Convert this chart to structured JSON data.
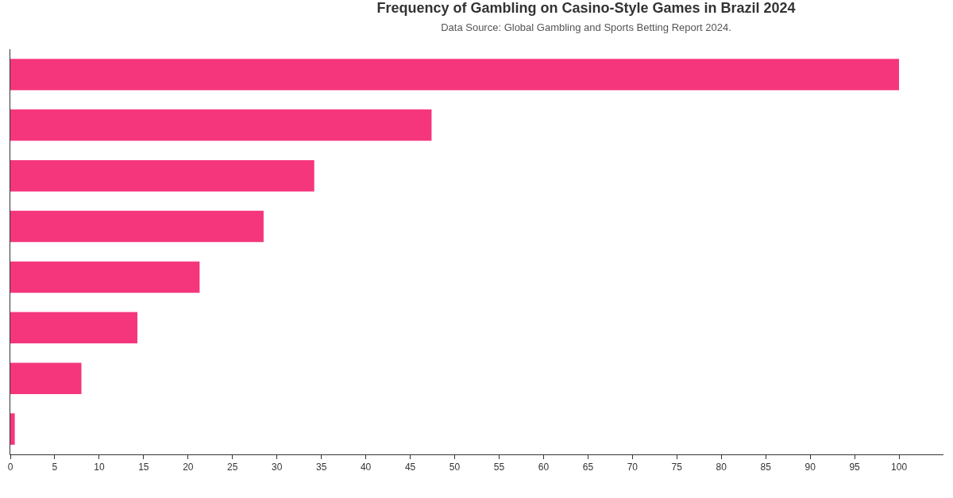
{
  "chart_data": {
    "type": "bar",
    "orientation": "horizontal",
    "title": "Frequency of Gambling on Casino-Style Games in Brazil 2024",
    "subtitle": "Data Source: Global Gambling and Sports Betting Report 2024.",
    "categories": [
      null,
      null,
      null,
      null,
      null,
      null,
      null,
      null
    ],
    "values": [
      100,
      47.4,
      34.2,
      28.5,
      21.3,
      14.3,
      8.0,
      0.5
    ],
    "color": "#f5367c",
    "xlim": [
      0,
      105
    ],
    "xticks": [
      0,
      5,
      10,
      15,
      20,
      25,
      30,
      35,
      40,
      45,
      50,
      55,
      60,
      65,
      70,
      75,
      80,
      85,
      90,
      95,
      100
    ],
    "tick_labels": "x"
  }
}
